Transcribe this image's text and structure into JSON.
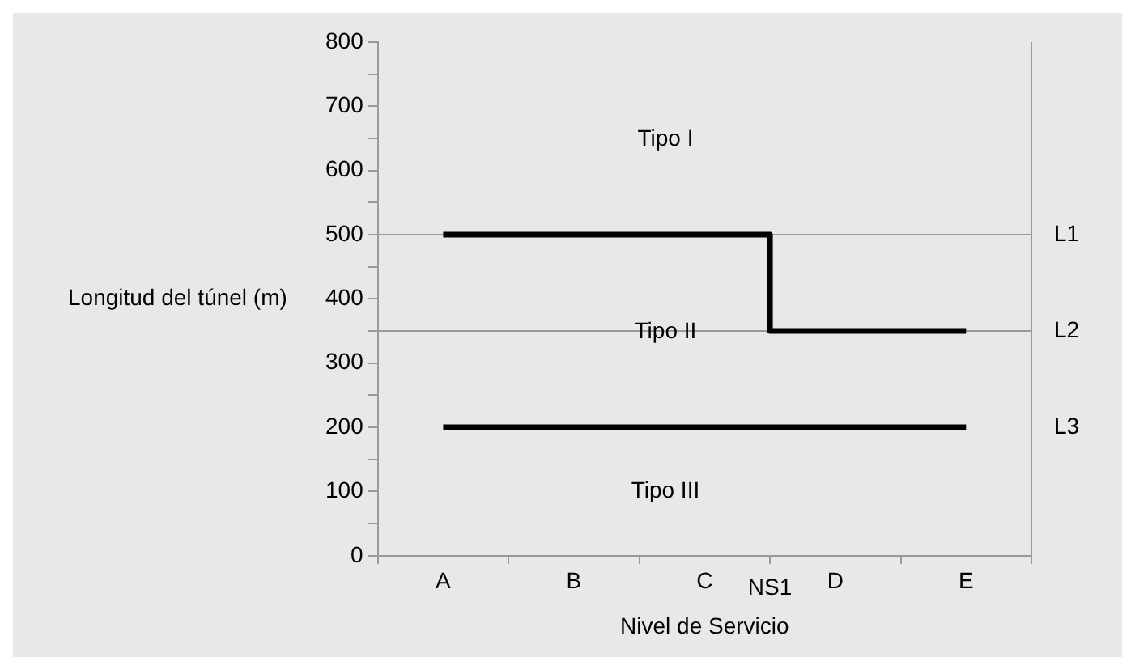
{
  "chart_data": {
    "type": "line",
    "xlabel": "Nivel de Servicio",
    "ylabel": "Longitud del túnel (m)",
    "categories": [
      "A",
      "B",
      "C",
      "D",
      "E"
    ],
    "ylim": [
      0,
      800
    ],
    "yticks": [
      0,
      {
        "value": 50,
        "label": null
      },
      100,
      {
        "value": 150,
        "label": null
      },
      200,
      {
        "value": 250,
        "label": null
      },
      300,
      {
        "value": 350,
        "label": null
      },
      400,
      {
        "value": 450,
        "label": null
      },
      500,
      {
        "value": 550,
        "label": null
      },
      600,
      {
        "value": 650,
        "label": null
      },
      700,
      {
        "value": 750,
        "label": null
      },
      800
    ],
    "series": [
      {
        "type": "step",
        "color": "#000000",
        "values": [
          500,
          500,
          500,
          350,
          350
        ]
      },
      {
        "type": "line",
        "name": "L3",
        "color": "#000000",
        "values": [
          200,
          200,
          200,
          200,
          200
        ]
      }
    ],
    "ref_lines": [
      {
        "axis": "y",
        "value": 500,
        "label": "L1",
        "color": "#9a9a9a"
      },
      {
        "axis": "y",
        "value": 350,
        "label": "L2",
        "color": "#9a9a9a"
      }
    ],
    "annotations": [
      "Tipo I",
      "Tipo II",
      "Tipo III",
      "NS1"
    ],
    "grid": false,
    "legend": false,
    "marker": "none",
    "line_style": "solid"
  }
}
